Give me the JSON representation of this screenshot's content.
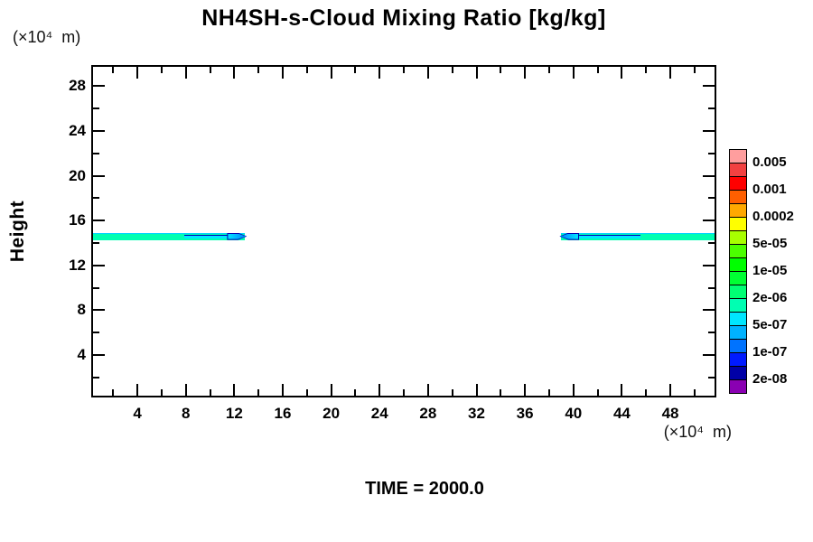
{
  "chart_data": {
    "type": "filled-contour",
    "title": "NH4SH-s-Cloud Mixing Ratio [kg/kg]",
    "ylabel": "Height",
    "y_unit": "(×10⁴  m)",
    "x_unit": "(×10⁴  m)",
    "time_annotation": "TIME = 2000.0",
    "grid": "off",
    "x_axis": {
      "range": [
        0.34,
        51.65
      ],
      "major_ticks": [
        4,
        8,
        12,
        16,
        20,
        24,
        28,
        32,
        36,
        40,
        44,
        48
      ],
      "minor_ticks": [
        2,
        6,
        10,
        14,
        18,
        22,
        26,
        30,
        34,
        38,
        42,
        46,
        50
      ]
    },
    "y_axis": {
      "range": [
        0.37,
        29.73
      ],
      "major_ticks": [
        4,
        8,
        12,
        16,
        20,
        24,
        28
      ],
      "minor_ticks": [
        2,
        6,
        10,
        14,
        18,
        22,
        26
      ]
    },
    "colorbar": {
      "position": "right",
      "levels": [
        "0.005",
        "0.001",
        "0.0002",
        "5e-05",
        "1e-05",
        "2e-06",
        "5e-07",
        "1e-07",
        "2e-08"
      ],
      "colors": [
        "#FF9E9E",
        "#F24141",
        "#FF0000",
        "#FF5F00",
        "#FFA800",
        "#FFFF00",
        "#A8FF00",
        "#4CFF00",
        "#00FF00",
        "#00FF33",
        "#00FF73",
        "#00FFB2",
        "#00E6FF",
        "#00B2FF",
        "#0073FF",
        "#001AFF",
        "#0000A6",
        "#8A00B2"
      ]
    },
    "cloud_bands": [
      {
        "x_start": 0.34,
        "x_end": 12.9,
        "height": 14.6,
        "thickness": 0.65,
        "core_value": "2e-06",
        "tip_value": "1e-07",
        "tip": "right",
        "core_frac": 0.34
      },
      {
        "x_start": 39.0,
        "x_end": 51.65,
        "height": 14.6,
        "thickness": 0.65,
        "core_value": "2e-06",
        "tip_value": "1e-07",
        "tip": "left",
        "core_frac": 0.46
      }
    ],
    "band_colors": {
      "body": "#00FFB2",
      "edge": "#00D4FF",
      "core": "#00E6FF",
      "tip": "#0080FF",
      "outline": "#0000B2"
    }
  }
}
